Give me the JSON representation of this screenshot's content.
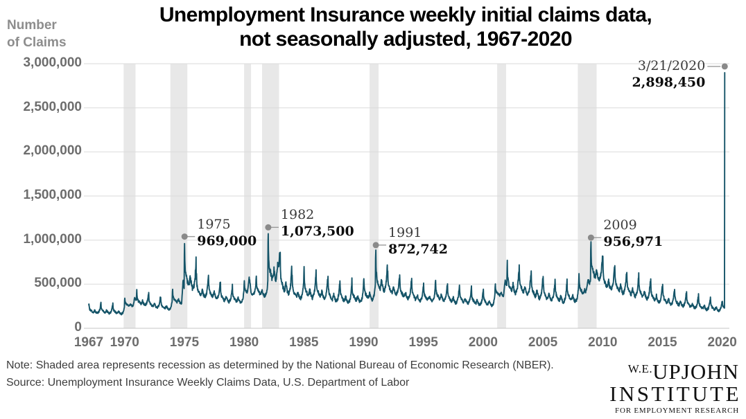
{
  "header": {
    "title_line1": "Unemployment Insurance weekly initial claims data,",
    "title_line2": "not seasonally adjusted, 1967-2020",
    "y_axis_label_line1": "Number",
    "y_axis_label_line2": "of Claims"
  },
  "footer": {
    "note": "Note: Shaded area represents recession as determined by the National Bureau of Economic Research (NBER).",
    "source": "Source:  Unemployment Insurance Weekly Claims Data, U.S. Department of Labor"
  },
  "logo": {
    "prefix": "W.E.",
    "name": "UPJOHN",
    "line2": "INSTITUTE",
    "line3": "FOR EMPLOYMENT RESEARCH"
  },
  "chart_data": {
    "type": "line",
    "title": "Unemployment Insurance weekly initial claims data, not seasonally adjusted, 1967-2020",
    "xlabel": "",
    "ylabel": "Number of Claims",
    "xlim": [
      1967,
      2020.6
    ],
    "ylim": [
      0,
      3000000
    ],
    "grid": true,
    "legend": "none",
    "line_color": "#155468",
    "recession_band_color": "#e8e8e8",
    "grid_color": "#dadada",
    "axis_line_color": "#c6c6c6",
    "marker_color": "#8a8a8a",
    "y_ticks": [
      {
        "value": 0,
        "label": "0"
      },
      {
        "value": 500000,
        "label": "500,000"
      },
      {
        "value": 1000000,
        "label": "1,000,000"
      },
      {
        "value": 1500000,
        "label": "1,500,000"
      },
      {
        "value": 2000000,
        "label": "2,000,000"
      },
      {
        "value": 2500000,
        "label": "2,500,000"
      },
      {
        "value": 3000000,
        "label": "3,000,000"
      }
    ],
    "x_ticks": [
      1967,
      1970,
      1975,
      1980,
      1985,
      1990,
      1995,
      2000,
      2005,
      2010,
      2015,
      2020
    ],
    "recessions_nber": [
      [
        1969.92,
        1970.92
      ],
      [
        1973.83,
        1975.25
      ],
      [
        1980.0,
        1980.58
      ],
      [
        1981.5,
        1982.92
      ],
      [
        1990.5,
        1991.25
      ],
      [
        2001.17,
        2001.92
      ],
      [
        2007.92,
        2009.5
      ]
    ],
    "annotations": [
      {
        "label": "1975",
        "value_label": "969,000",
        "year_frac": 1975.019,
        "value": 969000,
        "side": "right"
      },
      {
        "label": "1982",
        "value_label": "1,073,500",
        "year_frac": 1982.019,
        "value": 1073500,
        "side": "right"
      },
      {
        "label": "1991",
        "value_label": "872,742",
        "year_frac": 1991.019,
        "value": 872742,
        "side": "right"
      },
      {
        "label": "2009",
        "value_label": "956,971",
        "year_frac": 2009.019,
        "value": 956971,
        "side": "right"
      },
      {
        "label": "3/21/2020",
        "value_label": "2,898,450",
        "year_frac": 2020.212,
        "value": 2898450,
        "side": "left"
      }
    ],
    "series_end": {
      "year": 2020,
      "week": 11,
      "value": 2898450,
      "date_label": "3/21/2020"
    },
    "seasonal_envelope": {
      "description": "Weekly NSA initial claims approximated per year as [year, january_peak, autumn_low]; weekly values follow the seasonal shape anchors between these bounds.",
      "years": [
        [
          1967,
          285000,
          170000
        ],
        [
          1968,
          295000,
          165000
        ],
        [
          1969,
          280000,
          160000
        ],
        [
          1970,
          340000,
          245000
        ],
        [
          1971,
          430000,
          260000
        ],
        [
          1972,
          395000,
          230000
        ],
        [
          1973,
          355000,
          210000
        ],
        [
          1974,
          445000,
          280000
        ],
        [
          1975,
          969000,
          430000
        ],
        [
          1976,
          625000,
          350000
        ],
        [
          1977,
          610000,
          330000
        ],
        [
          1978,
          515000,
          290000
        ],
        [
          1979,
          485000,
          285000
        ],
        [
          1980,
          535000,
          380000
        ],
        [
          1981,
          605000,
          360000
        ],
        [
          1982,
          1073500,
          500000
        ],
        [
          1983,
          845000,
          380000
        ],
        [
          1984,
          610000,
          330000
        ],
        [
          1985,
          680000,
          335000
        ],
        [
          1986,
          650000,
          330000
        ],
        [
          1987,
          600000,
          295000
        ],
        [
          1988,
          550000,
          280000
        ],
        [
          1989,
          560000,
          290000
        ],
        [
          1990,
          575000,
          320000
        ],
        [
          1991,
          872742,
          410000
        ],
        [
          1992,
          655000,
          380000
        ],
        [
          1993,
          605000,
          330000
        ],
        [
          1994,
          555000,
          300000
        ],
        [
          1995,
          510000,
          300000
        ],
        [
          1996,
          550000,
          310000
        ],
        [
          1997,
          510000,
          280000
        ],
        [
          1998,
          485000,
          275000
        ],
        [
          1999,
          470000,
          260000
        ],
        [
          2000,
          455000,
          250000
        ],
        [
          2001,
          505000,
          360000
        ],
        [
          2002,
          770000,
          385000
        ],
        [
          2003,
          700000,
          380000
        ],
        [
          2004,
          655000,
          330000
        ],
        [
          2005,
          605000,
          305000
        ],
        [
          2006,
          560000,
          290000
        ],
        [
          2007,
          550000,
          295000
        ],
        [
          2008,
          605000,
          370000
        ],
        [
          2009,
          956971,
          545000
        ],
        [
          2010,
          805000,
          430000
        ],
        [
          2011,
          720000,
          390000
        ],
        [
          2012,
          650000,
          355000
        ],
        [
          2013,
          615000,
          330000
        ],
        [
          2014,
          560000,
          290000
        ],
        [
          2015,
          505000,
          265000
        ],
        [
          2016,
          455000,
          245000
        ],
        [
          2017,
          410000,
          225000
        ],
        [
          2018,
          380000,
          205000
        ],
        [
          2019,
          350000,
          195000
        ],
        [
          2020,
          310000,
          205000
        ]
      ],
      "shape_anchors": [
        [
          0,
          0.8
        ],
        [
          1,
          1.0
        ],
        [
          2,
          0.62
        ],
        [
          3,
          0.5
        ],
        [
          5,
          0.38
        ],
        [
          8,
          0.28
        ],
        [
          12,
          0.22
        ],
        [
          16,
          0.13
        ],
        [
          20,
          0.1
        ],
        [
          24,
          0.22
        ],
        [
          26,
          0.3
        ],
        [
          28,
          0.22
        ],
        [
          31,
          0.12
        ],
        [
          34,
          0.06
        ],
        [
          37,
          0.02
        ],
        [
          40,
          0.06
        ],
        [
          44,
          0.14
        ],
        [
          47,
          0.28
        ],
        [
          50,
          0.55
        ],
        [
          51,
          0.68
        ]
      ],
      "recession_bumps": [
        [
          1970,
          36,
          52,
          90000
        ],
        [
          1974,
          40,
          53,
          230000
        ],
        [
          1980,
          14,
          30,
          170000
        ],
        [
          1982,
          34,
          50,
          170000
        ],
        [
          2001,
          36,
          52,
          160000
        ],
        [
          2008,
          30,
          52,
          170000
        ]
      ]
    }
  }
}
